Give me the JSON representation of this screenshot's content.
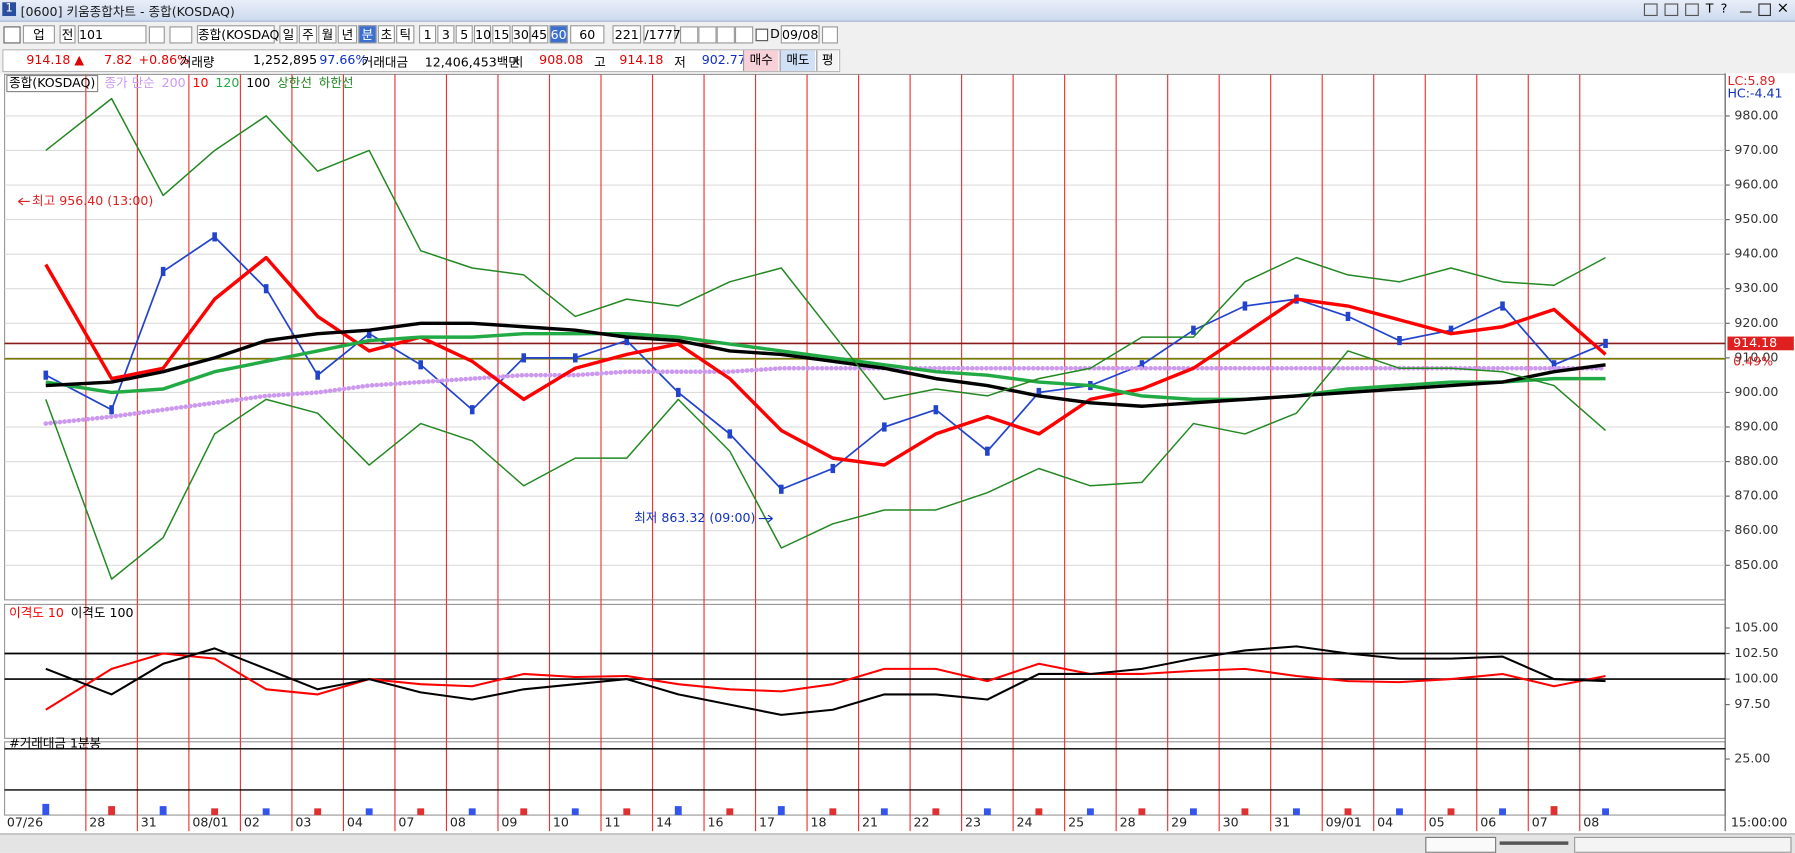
{
  "window": {
    "number": "1",
    "title": "[0600] 키움종합차트 - 종합(KOSDAQ)",
    "controls": [
      "T",
      "?"
    ]
  },
  "toolbar": {
    "items": [
      "업",
      "전",
      "101",
      "종합(KOSDAQ)",
      "일",
      "주",
      "월",
      "년",
      "분",
      "초",
      "틱",
      "1",
      "3",
      "5",
      "10",
      "15",
      "30",
      "45",
      "60",
      "60",
      "221",
      "/1777",
      "D",
      "09/08"
    ],
    "selected": [
      8,
      18
    ]
  },
  "quote": {
    "price": "914.18 ▲",
    "change": "7.82",
    "change_rate": "+0.86%",
    "volume_label": "거래량",
    "volume": "1,252,895",
    "volume_ratio": "97.66%",
    "amount_label": "거래대금",
    "amount": "12,406,453백만",
    "open_label": "시",
    "open": "908.08",
    "high_label": "고",
    "high": "914.18",
    "low_label": "저",
    "low": "902.77",
    "buttons": [
      "매수",
      "매도",
      "평"
    ]
  },
  "chart_data": [
    {
      "type": "line",
      "title": "종합(KOSDAQ)",
      "legend_prefix": "종가 단순",
      "color": "#2244cc",
      "categories": [
        "07/26",
        "28",
        "31",
        "08/01",
        "02",
        "03",
        "04",
        "07",
        "08",
        "09",
        "10",
        "11",
        "14",
        "16",
        "17",
        "18",
        "21",
        "22",
        "23",
        "24",
        "25",
        "28",
        "29",
        "30",
        "31",
        "09/01",
        "04",
        "05",
        "06",
        "07",
        "08"
      ],
      "values": [
        905,
        895,
        935,
        945,
        930,
        905,
        917,
        908,
        895,
        910,
        910,
        915,
        900,
        888,
        872,
        878,
        890,
        895,
        883,
        900,
        902,
        908,
        918,
        925,
        927,
        922,
        915,
        918,
        925,
        908,
        914.18
      ],
      "series": [
        {
          "name": "200",
          "color": "#cc99ee",
          "style": "dotted",
          "values": [
            891,
            893,
            895,
            897,
            899,
            900,
            902,
            903,
            904,
            905,
            905,
            906,
            906,
            906,
            907,
            907,
            907,
            907,
            907,
            907,
            907,
            907,
            907,
            907,
            907,
            907,
            907,
            907,
            907,
            907,
            907
          ]
        },
        {
          "name": "10",
          "color": "#ff0000",
          "style": "bold",
          "values": [
            937,
            904,
            907,
            927,
            939,
            922,
            912,
            916,
            909,
            898,
            907,
            911,
            914,
            904,
            889,
            881,
            879,
            888,
            893,
            888,
            898,
            901,
            907,
            917,
            927,
            925,
            921,
            917,
            919,
            924,
            911
          ]
        },
        {
          "name": "120",
          "color": "#22aa44",
          "style": "bold",
          "values": [
            903,
            900,
            901,
            906,
            909,
            912,
            915,
            916,
            916,
            917,
            917,
            917,
            916,
            914,
            912,
            910,
            908,
            906,
            905,
            903,
            902,
            899,
            898,
            898,
            899,
            901,
            902,
            903,
            903,
            904,
            904
          ]
        },
        {
          "name": "100",
          "color": "#000000",
          "style": "bold",
          "values": [
            902,
            903,
            906,
            910,
            915,
            917,
            918,
            920,
            920,
            919,
            918,
            916,
            915,
            912,
            911,
            909,
            907,
            904,
            902,
            899,
            897,
            896,
            897,
            898,
            899,
            900,
            901,
            902,
            903,
            906,
            908
          ]
        },
        {
          "name": "상한선",
          "color": "#228822",
          "style": "thin",
          "values": [
            970,
            985,
            957,
            970,
            980,
            964,
            970,
            941,
            936,
            934,
            922,
            927,
            925,
            932,
            936,
            917,
            898,
            901,
            899,
            904,
            907,
            916,
            916,
            932,
            939,
            934,
            932,
            936,
            932,
            931,
            939
          ]
        },
        {
          "name": "하한선",
          "color": "#228822",
          "style": "thin",
          "values": [
            898,
            846,
            858,
            888,
            898,
            894,
            879,
            891,
            886,
            873,
            881,
            881,
            898,
            883,
            855,
            862,
            866,
            866,
            871,
            878,
            873,
            874,
            891,
            888,
            894,
            912,
            907,
            907,
            906,
            902,
            889
          ]
        }
      ],
      "ylim": [
        840,
        992
      ],
      "yticks": [
        {
          "value": 850,
          "label": "850.00"
        },
        {
          "value": 860,
          "label": "860.00"
        },
        {
          "value": 870,
          "label": "870.00"
        },
        {
          "value": 880,
          "label": "880.00"
        },
        {
          "value": 890,
          "label": "890.00"
        },
        {
          "value": 900,
          "label": "900.00"
        },
        {
          "value": 910,
          "label": "910.00"
        },
        {
          "value": 920,
          "label": "920.00"
        },
        {
          "value": 930,
          "label": "930.00"
        },
        {
          "value": 940,
          "label": "940.00"
        },
        {
          "value": 950,
          "label": "950.00"
        },
        {
          "value": 960,
          "label": "960.00"
        },
        {
          "value": 970,
          "label": "970.00"
        },
        {
          "value": 980,
          "label": "980.00"
        }
      ],
      "grid": true,
      "reference_lines": [
        {
          "value": 914.18,
          "label": "914.18",
          "color": "#8b1a1a"
        },
        {
          "value": 909.73,
          "label": "0.49%",
          "color": "#7a7a00"
        }
      ],
      "corner_labels": [
        "LC:5.89",
        "HC:-4.41"
      ],
      "annotations": [
        "최고 956.40 (13:00)",
        "최저 863.32 (09:00)"
      ],
      "time_label": "15:00:00"
    },
    {
      "type": "line",
      "series": [
        {
          "name": "이격도 10",
          "color": "#ff0000",
          "style": "normal",
          "values": [
            97,
            101,
            102.5,
            102,
            99,
            98.5,
            100,
            99.5,
            99.3,
            100.5,
            100.2,
            100.3,
            99.5,
            99,
            98.8,
            99.5,
            101,
            101,
            99.8,
            101.5,
            100.5,
            100.5,
            100.8,
            101,
            100.3,
            99.8,
            99.7,
            100,
            100.5,
            99.3,
            100.3
          ]
        },
        {
          "name": "이격도 100",
          "color": "#000000",
          "style": "normal",
          "values": [
            101,
            98.5,
            101.5,
            103,
            101,
            99,
            100,
            98.7,
            98,
            99,
            99.5,
            100,
            98.5,
            97.5,
            96.5,
            97,
            98.5,
            98.5,
            98,
            100.5,
            100.5,
            101,
            102,
            102.8,
            103.2,
            102.5,
            102,
            102,
            102.2,
            100,
            99.8
          ]
        }
      ],
      "ylim": [
        94.2,
        107.3
      ],
      "yticks": [
        {
          "value": 97.5,
          "label": "97.50"
        },
        {
          "value": 100,
          "label": "100.00"
        },
        {
          "value": 102.5,
          "label": "102.50"
        },
        {
          "value": 105,
          "label": "105.00"
        }
      ],
      "reference_lines": [
        100,
        102.5
      ]
    },
    {
      "type": "bar",
      "title": "#거래대금 1분봉",
      "color": "#3355ee",
      "values": [
        5,
        4,
        4,
        3,
        3,
        3,
        3,
        3,
        3,
        3,
        3,
        3,
        4,
        3,
        4,
        3,
        3,
        3,
        3,
        3,
        3,
        3,
        3,
        3,
        3,
        3,
        3,
        3,
        3,
        4,
        3
      ],
      "ylim": [
        0,
        32.7
      ],
      "yticks": [
        {
          "value": 25,
          "label": "25.00"
        }
      ],
      "reference_lines": [
        29.6,
        11.2
      ]
    }
  ]
}
